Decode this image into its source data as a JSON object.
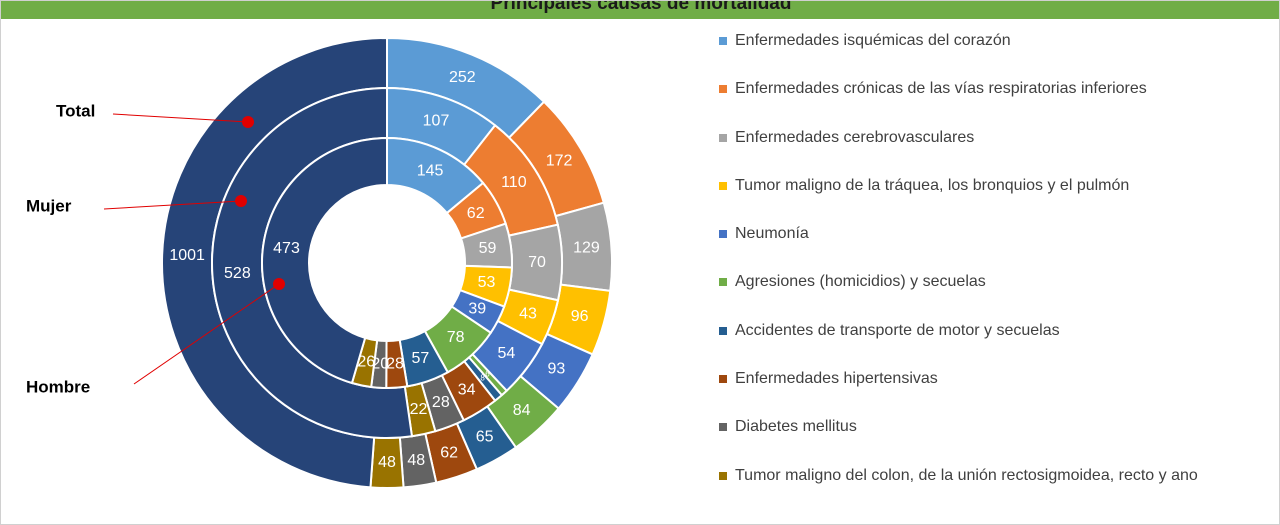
{
  "chart_data": {
    "type": "donut",
    "title": "Principales causas de mortalidad",
    "categories": [
      "Enfermedades isquémicas del corazón",
      "Enfermedades crónicas de las vías respiratorias inferiores",
      "Enfermedades cerebrovasculares",
      "Tumor maligno de la tráquea, los bronquios y el pulmón",
      "Neumonía",
      "Agresiones (homicidios) y secuelas",
      "Accidentes de transporte de motor y secuelas",
      "Enfermedades hipertensivas",
      "Diabetes mellitus",
      "Tumor maligno del colon, de la unión rectosigmoidea, recto y ano",
      null
    ],
    "colors": [
      "#5b9bd5",
      "#ed7d31",
      "#a5a5a5",
      "#ffc000",
      "#4472c4",
      "#70ad47",
      "#255e91",
      "#9e480e",
      "#636363",
      "#997300",
      "#264478"
    ],
    "series": [
      {
        "name": "Total",
        "values": [
          252,
          172,
          129,
          96,
          93,
          84,
          65,
          62,
          48,
          48,
          1001
        ]
      },
      {
        "name": "Mujer",
        "values": [
          107,
          110,
          70,
          43,
          54,
          6,
          8,
          34,
          28,
          22,
          528
        ]
      },
      {
        "name": "Hombre",
        "values": [
          145,
          62,
          59,
          53,
          39,
          78,
          57,
          28,
          20,
          26,
          473
        ]
      }
    ],
    "title_color": "#70ad47",
    "annotation_color": "#e00000"
  }
}
